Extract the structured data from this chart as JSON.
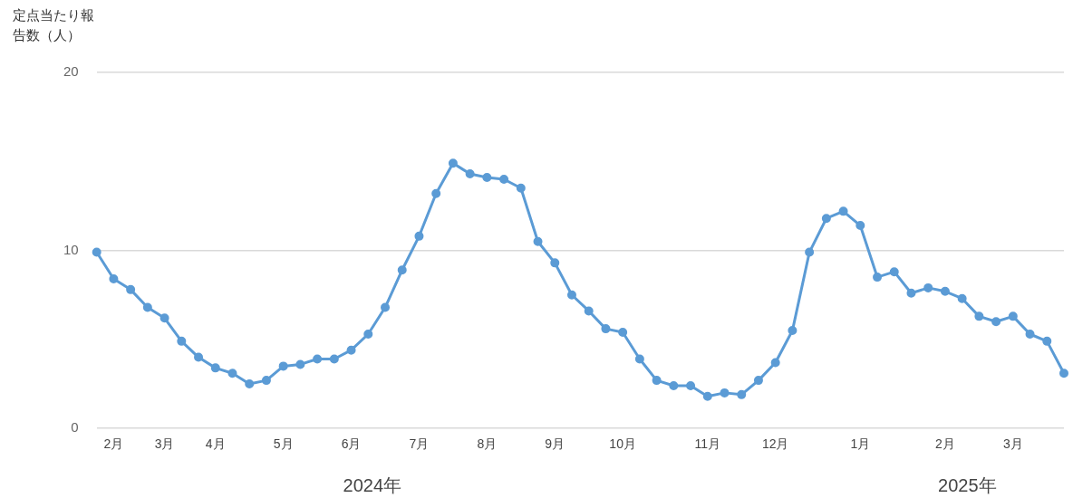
{
  "chart_data": {
    "type": "line",
    "ylabel": "定点当たり報告数（人）",
    "categories": [
      null,
      "2月",
      null,
      null,
      "3月",
      null,
      null,
      "4月",
      null,
      null,
      null,
      "5月",
      null,
      null,
      null,
      "6月",
      null,
      null,
      null,
      "7月",
      null,
      null,
      null,
      "8月",
      null,
      null,
      null,
      "9月",
      null,
      null,
      null,
      "10月",
      null,
      null,
      null,
      null,
      "11月",
      null,
      null,
      null,
      "12月",
      null,
      null,
      null,
      null,
      "1月",
      null,
      null,
      null,
      null,
      "2月",
      null,
      null,
      null,
      "3月",
      null,
      null,
      null
    ],
    "series": [
      {
        "color": "#5b9bd5",
        "values": [
          9.9,
          8.4,
          7.8,
          6.8,
          6.2,
          4.9,
          4.0,
          3.4,
          3.1,
          2.5,
          2.7,
          3.5,
          3.6,
          3.9,
          3.9,
          4.4,
          5.3,
          6.8,
          8.9,
          10.8,
          13.2,
          14.9,
          14.3,
          14.1,
          14.0,
          13.5,
          10.5,
          9.3,
          7.5,
          6.6,
          5.6,
          5.4,
          3.9,
          2.7,
          2.4,
          2.4,
          1.8,
          2.0,
          1.9,
          2.7,
          3.7,
          5.5,
          9.9,
          11.8,
          12.2,
          11.4,
          8.5,
          8.8,
          7.6,
          7.9,
          7.7,
          7.3,
          6.3,
          6.0,
          6.3,
          5.3,
          4.9,
          3.1
        ]
      }
    ],
    "ylim": [
      0,
      20
    ],
    "yticks": [
      0,
      10,
      20
    ],
    "grid": "y",
    "legend": false,
    "marker": "circle",
    "line_style": "solid",
    "annotations": [
      "2024年",
      "2025年"
    ]
  }
}
